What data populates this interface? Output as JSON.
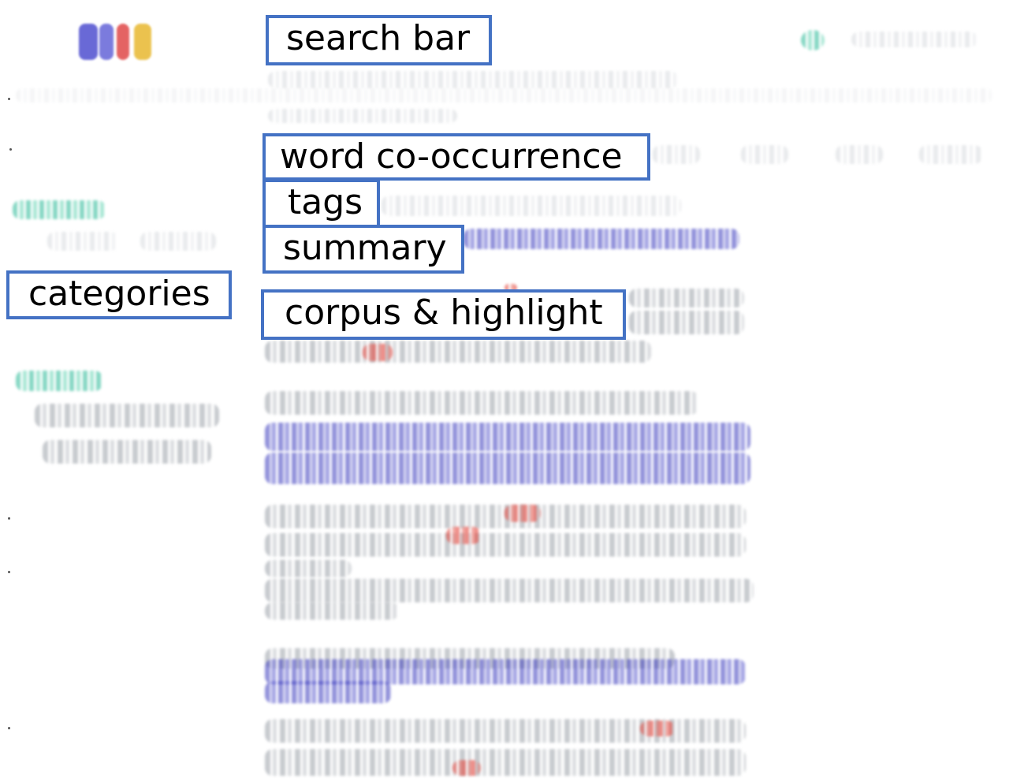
{
  "labels": {
    "search_bar": "search bar",
    "word_co_occurrence": "word co-occurrence",
    "tags": "tags",
    "summary": "summary",
    "categories": "categories",
    "corpus_highlight": "corpus & highlight"
  },
  "colors": {
    "annotation_border": "#4472c4",
    "summary_text": "#3c3cbe",
    "highlight": "#e6463c",
    "category_heading": "#28b996",
    "logo": [
      "#3c3cbe",
      "#e6463c",
      "#e6b428"
    ]
  },
  "icons": {
    "logo": "app-logo-icon",
    "account": "account-icon"
  }
}
